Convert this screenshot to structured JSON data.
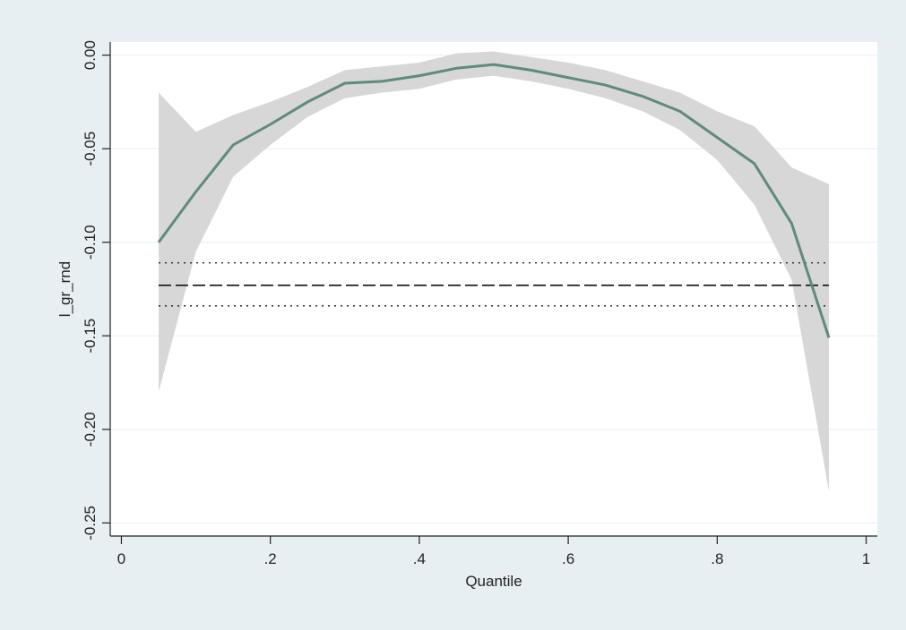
{
  "chart_data": {
    "type": "line",
    "title": "",
    "xlabel": "Quantile",
    "ylabel": "l_gr_rnd",
    "xlim": [
      -0.015,
      1.015
    ],
    "ylim": [
      -0.257,
      0.007
    ],
    "x_ticks": [
      {
        "value": 0,
        "label": "0"
      },
      {
        "value": 0.2,
        "label": ".2"
      },
      {
        "value": 0.4,
        "label": ".4"
      },
      {
        "value": 0.6,
        "label": ".6"
      },
      {
        "value": 0.8,
        "label": ".8"
      },
      {
        "value": 1,
        "label": "1"
      }
    ],
    "y_ticks": [
      {
        "value": 0,
        "label": "0.00"
      },
      {
        "value": -0.05,
        "label": "-0.05"
      },
      {
        "value": -0.1,
        "label": "-0.10"
      },
      {
        "value": -0.15,
        "label": "-0.15"
      },
      {
        "value": -0.2,
        "label": "-0.20"
      },
      {
        "value": -0.25,
        "label": "-0.25"
      }
    ],
    "grid": "horizontal",
    "legend": "none",
    "x": [
      0.05,
      0.1,
      0.15,
      0.2,
      0.25,
      0.3,
      0.35,
      0.4,
      0.45,
      0.5,
      0.55,
      0.6,
      0.65,
      0.7,
      0.75,
      0.8,
      0.85,
      0.9,
      0.95
    ],
    "series": [
      {
        "kind": "line",
        "values": [
          -0.1,
          -0.073,
          -0.048,
          -0.037,
          -0.025,
          -0.015,
          -0.014,
          -0.011,
          -0.007,
          -0.005,
          -0.008,
          -0.012,
          -0.016,
          -0.022,
          -0.03,
          -0.044,
          -0.058,
          -0.09,
          -0.151
        ],
        "color": "#5f8a80"
      },
      {
        "kind": "band",
        "lower": [
          -0.18,
          -0.105,
          -0.065,
          -0.048,
          -0.033,
          -0.023,
          -0.02,
          -0.018,
          -0.013,
          -0.011,
          -0.014,
          -0.018,
          -0.023,
          -0.03,
          -0.04,
          -0.056,
          -0.08,
          -0.12,
          -0.233
        ],
        "upper": [
          -0.02,
          -0.041,
          -0.032,
          -0.025,
          -0.017,
          -0.008,
          -0.006,
          -0.004,
          0.001,
          0.002,
          -0.001,
          -0.004,
          -0.008,
          -0.014,
          -0.02,
          -0.03,
          -0.038,
          -0.06,
          -0.069
        ],
        "color": "#d7d7d7"
      },
      {
        "kind": "hline",
        "y": -0.123,
        "style": "dashed",
        "color": "#111111"
      },
      {
        "kind": "hline",
        "y": -0.111,
        "style": "dotted",
        "color": "#111111"
      },
      {
        "kind": "hline",
        "y": -0.134,
        "style": "dotted",
        "color": "#111111"
      }
    ]
  }
}
